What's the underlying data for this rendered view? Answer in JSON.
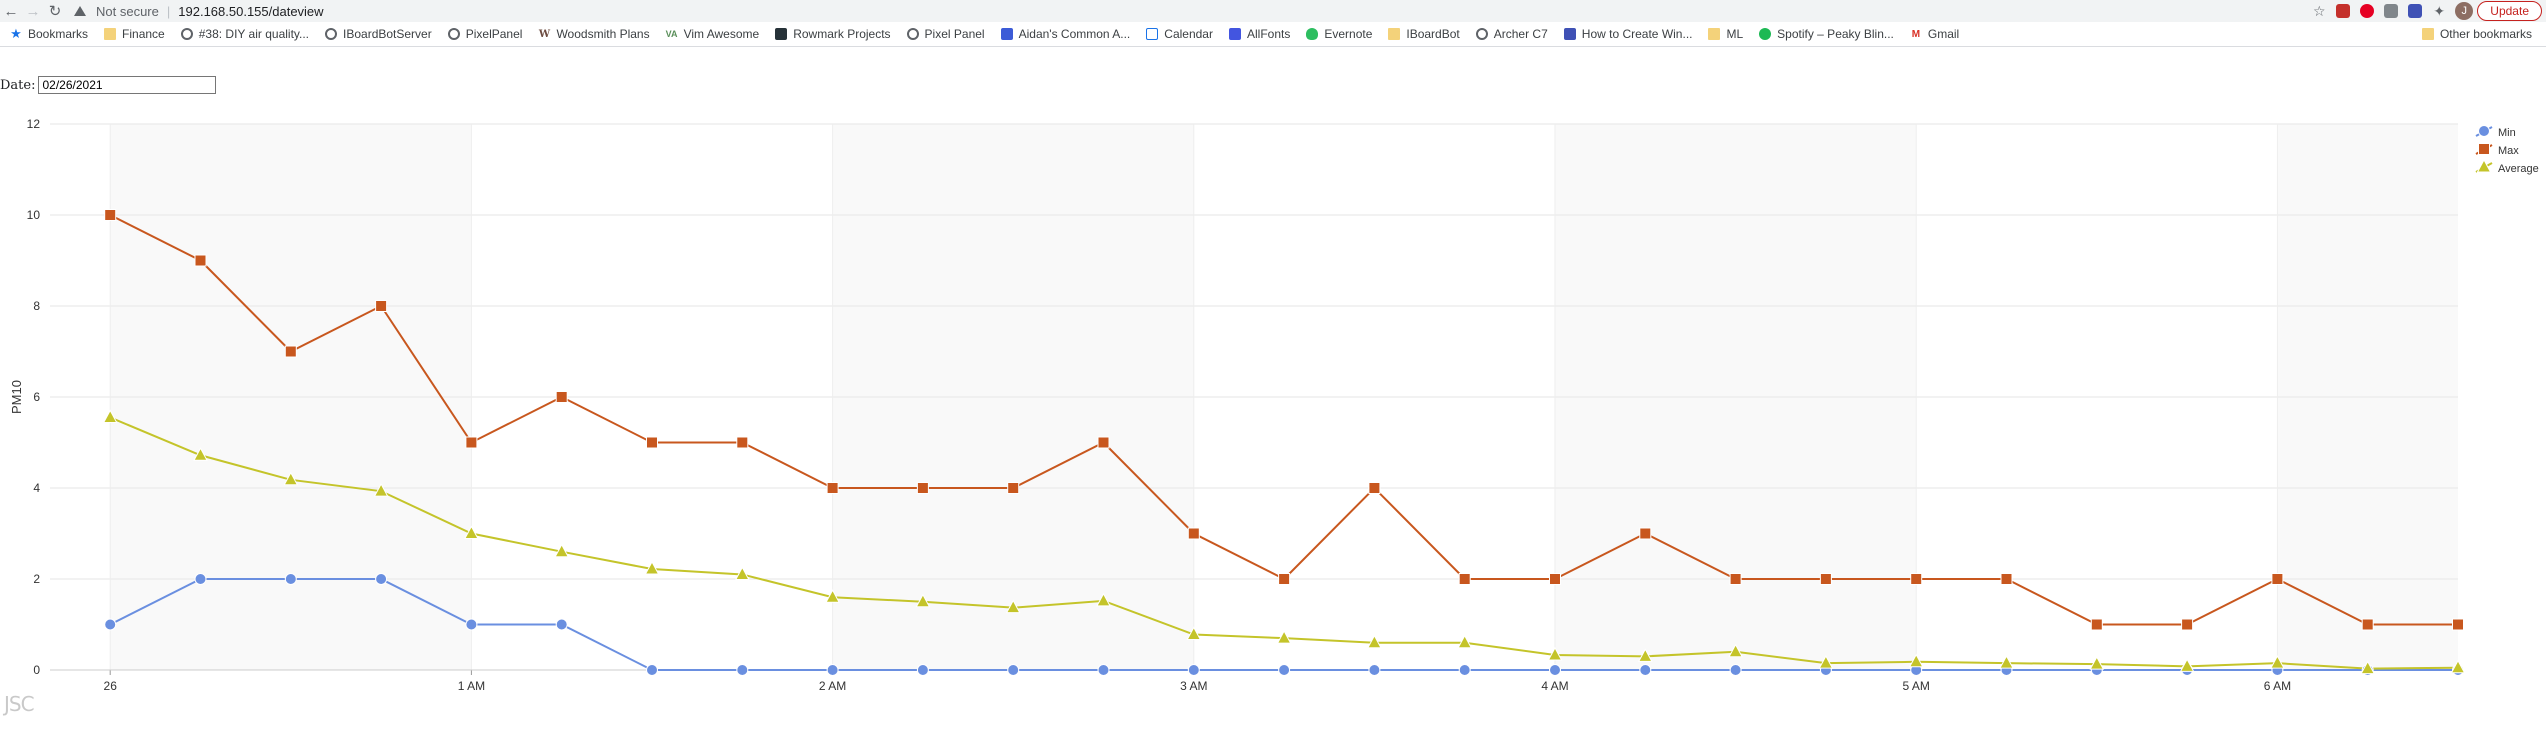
{
  "browser": {
    "not_secure": "Not secure",
    "url": "192.168.50.155/dateview",
    "update_label": "Update",
    "avatar_initial": "J"
  },
  "bookmarks": [
    {
      "label": "Bookmarks",
      "icon": "star-icon"
    },
    {
      "label": "Finance",
      "icon": "folder-icon"
    },
    {
      "label": "#38: DIY air quality...",
      "icon": "globe-icon"
    },
    {
      "label": "IBoardBotServer",
      "icon": "globe-icon"
    },
    {
      "label": "PixelPanel",
      "icon": "globe-icon"
    },
    {
      "label": "Woodsmith Plans",
      "icon": "w-icon"
    },
    {
      "label": "Vim Awesome",
      "icon": "va-icon"
    },
    {
      "label": "Rowmark Projects",
      "icon": "dark-square-icon"
    },
    {
      "label": "Pixel Panel",
      "icon": "globe-icon"
    },
    {
      "label": "Aidan's Common A...",
      "icon": "blue-square-icon"
    },
    {
      "label": "Calendar",
      "icon": "calendar-icon"
    },
    {
      "label": "AllFonts",
      "icon": "fonts-icon"
    },
    {
      "label": "Evernote",
      "icon": "evernote-icon"
    },
    {
      "label": "IBoardBot",
      "icon": "folder-icon"
    },
    {
      "label": "Archer C7",
      "icon": "globe-icon"
    },
    {
      "label": "How to Create Win...",
      "icon": "blue-b-icon"
    },
    {
      "label": "ML",
      "icon": "folder-icon"
    },
    {
      "label": "Spotify – Peaky Blin...",
      "icon": "spotify-icon"
    },
    {
      "label": "Gmail",
      "icon": "gmail-icon"
    }
  ],
  "other_bookmarks": "Other bookmarks",
  "form": {
    "date_label": "Date:",
    "date_value": "02/26/2021"
  },
  "logo_text": "JSC",
  "chart_data": {
    "type": "line",
    "ylabel": "PM10",
    "ylim": [
      0,
      12
    ],
    "yticks": [
      0,
      2,
      4,
      6,
      8,
      10,
      12
    ],
    "x_unit": "minutes since 00:00 on 26",
    "xlim": [
      -10,
      390
    ],
    "x_ticks": [
      {
        "x": 0,
        "label": "26"
      },
      {
        "x": 60,
        "label": "1 AM"
      },
      {
        "x": 120,
        "label": "2 AM"
      },
      {
        "x": 180,
        "label": "3 AM"
      },
      {
        "x": 240,
        "label": "4 AM"
      },
      {
        "x": 300,
        "label": "5 AM"
      },
      {
        "x": 360,
        "label": "6 AM"
      }
    ],
    "x": [
      0,
      15,
      30,
      45,
      60,
      75,
      90,
      105,
      120,
      135,
      150,
      165,
      180,
      195,
      210,
      225,
      240,
      255,
      270,
      285,
      300,
      315,
      330,
      345,
      360,
      375,
      390
    ],
    "series": [
      {
        "name": "Min",
        "color": "#6a8fe0",
        "marker": "circle",
        "values": [
          1,
          2,
          2,
          2,
          1,
          1,
          0,
          0,
          0,
          0,
          0,
          0,
          0,
          0,
          0,
          0,
          0,
          0,
          0,
          0,
          0,
          0,
          0,
          0,
          0,
          0,
          0
        ]
      },
      {
        "name": "Max",
        "color": "#c8571e",
        "marker": "square",
        "values": [
          10,
          9,
          7,
          8,
          5,
          6,
          5,
          5,
          4,
          4,
          4,
          5,
          3,
          2,
          4,
          2,
          2,
          3,
          2,
          2,
          2,
          2,
          1,
          1,
          2,
          1,
          1
        ]
      },
      {
        "name": "Average",
        "color": "#c4c42a",
        "marker": "triangle",
        "values": [
          5.55,
          4.72,
          4.18,
          3.93,
          3.0,
          2.6,
          2.22,
          2.1,
          1.6,
          1.5,
          1.37,
          1.52,
          0.78,
          0.7,
          0.6,
          0.6,
          0.33,
          0.3,
          0.4,
          0.15,
          0.18,
          0.15,
          0.13,
          0.08,
          0.15,
          0.03,
          0.05
        ]
      }
    ],
    "grid": true,
    "legend": "top-right"
  }
}
